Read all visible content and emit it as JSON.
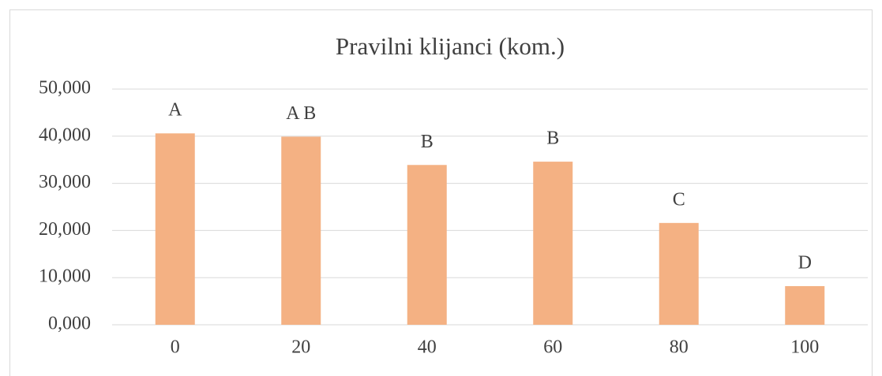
{
  "chart_data": {
    "type": "bar",
    "title": "Pravilni klijanci (kom.)",
    "categories": [
      "0",
      "20",
      "40",
      "60",
      "80",
      "100"
    ],
    "values": [
      40600,
      39900,
      33900,
      34600,
      21600,
      8200
    ],
    "annotations": [
      "A",
      "A B",
      "B",
      "B",
      "C",
      "D"
    ],
    "color": "#f4b183",
    "ylim": [
      0,
      50000
    ],
    "yticks": [
      {
        "value": 0,
        "label": "0,000"
      },
      {
        "value": 10000,
        "label": "10,000"
      },
      {
        "value": 20000,
        "label": "20,000"
      },
      {
        "value": 30000,
        "label": "30,000"
      },
      {
        "value": 40000,
        "label": "40,000"
      },
      {
        "value": 50000,
        "label": "50,000"
      }
    ],
    "grid": true
  }
}
